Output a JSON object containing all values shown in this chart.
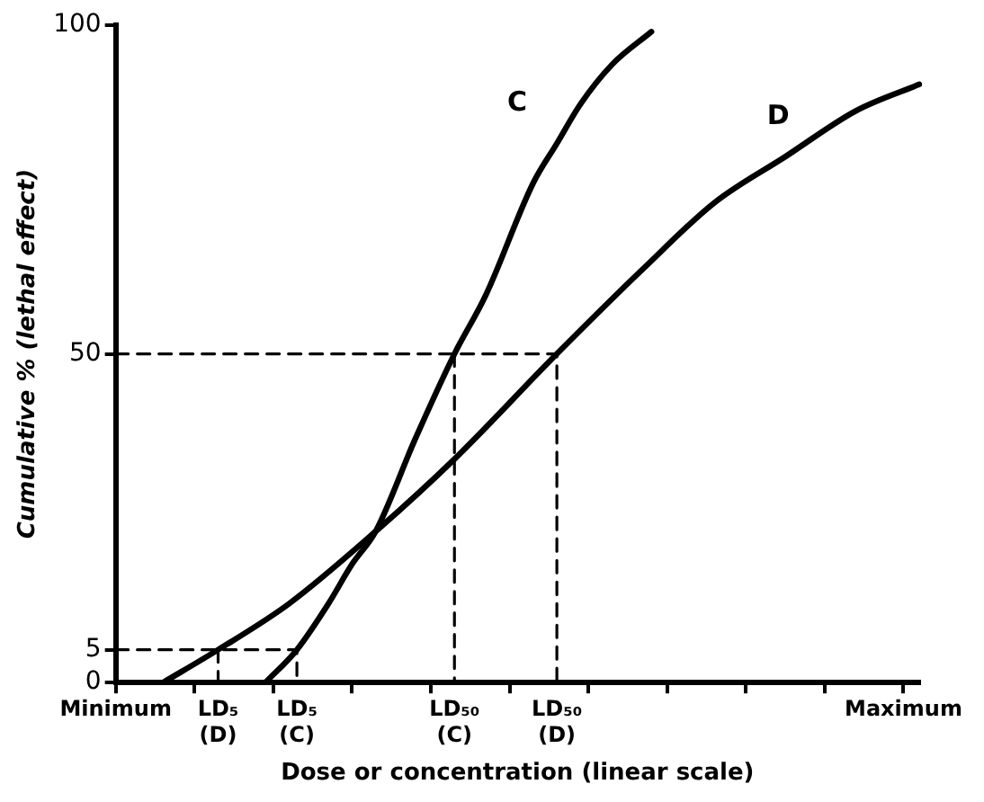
{
  "chart_data": {
    "type": "line",
    "xlabel": "Dose or concentration (linear scale)",
    "ylabel": "Cumulative % (lethal effect)",
    "categories": [
      "Minimum",
      null,
      null,
      null,
      null,
      null,
      null,
      null,
      null,
      null,
      null,
      null,
      null,
      "LD₅ (D)",
      null,
      null,
      null,
      null,
      null,
      null,
      null,
      null,
      null,
      "LD₅ (C)",
      null,
      null,
      null,
      null,
      null,
      null,
      null,
      null,
      null,
      null,
      null,
      null,
      null,
      null,
      null,
      null,
      null,
      null,
      null,
      "LD₅₀ (C)",
      null,
      null,
      null,
      null,
      null,
      null,
      null,
      null,
      null,
      null,
      null,
      null,
      "LD₅₀ (D)",
      null,
      null,
      null,
      null,
      null,
      null,
      null,
      null,
      null,
      null,
      null,
      null,
      null,
      null,
      null,
      null,
      null,
      null,
      null,
      null,
      null,
      null,
      null,
      null,
      null,
      null,
      null,
      null,
      null,
      null,
      null,
      null,
      null,
      null,
      null,
      null,
      null,
      null,
      null,
      null,
      null,
      null,
      null,
      "Maximum",
      null,
      null
    ],
    "ylim": [
      0,
      100
    ],
    "yticks": [
      0,
      5,
      50,
      100
    ],
    "grid": false,
    "legend": false,
    "marker": "none",
    "series": [
      {
        "name": "C",
        "color": "#000000",
        "values": [
          null,
          null,
          null,
          null,
          null,
          null,
          null,
          null,
          null,
          null,
          null,
          null,
          null,
          null,
          null,
          null,
          null,
          null,
          null,
          0,
          null,
          null,
          null,
          5,
          null,
          null,
          null,
          12,
          null,
          null,
          18,
          null,
          null,
          23,
          null,
          null,
          null,
          null,
          37,
          null,
          null,
          null,
          null,
          50,
          null,
          null,
          null,
          59,
          null,
          null,
          null,
          null,
          null,
          76,
          null,
          null,
          82,
          null,
          null,
          88,
          null,
          null,
          null,
          94,
          null,
          null,
          null,
          null,
          99,
          null,
          null,
          null,
          null,
          null,
          null,
          null,
          null,
          null,
          null,
          null,
          null,
          null,
          null,
          null,
          null,
          null,
          null,
          null,
          null,
          null,
          null,
          null,
          null,
          null,
          null,
          null,
          null,
          null,
          null,
          null,
          null,
          null,
          null
        ]
      },
      {
        "name": "D",
        "color": "#000000",
        "values": [
          null,
          null,
          null,
          null,
          null,
          null,
          0,
          null,
          null,
          null,
          null,
          null,
          null,
          5,
          null,
          null,
          null,
          null,
          null,
          null,
          null,
          null,
          12,
          null,
          null,
          null,
          null,
          null,
          null,
          null,
          null,
          null,
          null,
          23,
          null,
          null,
          null,
          null,
          null,
          null,
          null,
          null,
          null,
          34,
          null,
          null,
          null,
          null,
          null,
          null,
          null,
          null,
          null,
          null,
          null,
          null,
          50,
          null,
          null,
          null,
          null,
          null,
          null,
          null,
          null,
          null,
          null,
          63,
          null,
          null,
          null,
          null,
          null,
          null,
          null,
          null,
          73,
          null,
          null,
          null,
          null,
          null,
          null,
          null,
          null,
          80,
          null,
          null,
          null,
          null,
          null,
          null,
          null,
          null,
          87,
          null,
          null,
          null,
          null,
          null,
          null,
          null,
          91
        ]
      },
      {
        "color": "#000000",
        "line_style": "dashed",
        "x": [
          "Minimum",
          "LD₅₀ (D)",
          "LD₅₀ (D)"
        ],
        "values": [
          50,
          50,
          0
        ]
      },
      {
        "color": "#000000",
        "line_style": "dashed",
        "x": [
          "LD₅₀ (C)",
          "LD₅₀ (C)"
        ],
        "values": [
          50,
          0
        ]
      },
      {
        "color": "#000000",
        "line_style": "dashed",
        "x": [
          "Minimum",
          "LD₅ (C)",
          "LD₅ (C)"
        ],
        "values": [
          5,
          5,
          0
        ]
      },
      {
        "color": "#000000",
        "line_style": "dashed",
        "x": [
          "LD₅ (D)",
          "LD₅ (D)"
        ],
        "values": [
          5,
          0
        ]
      }
    ]
  }
}
